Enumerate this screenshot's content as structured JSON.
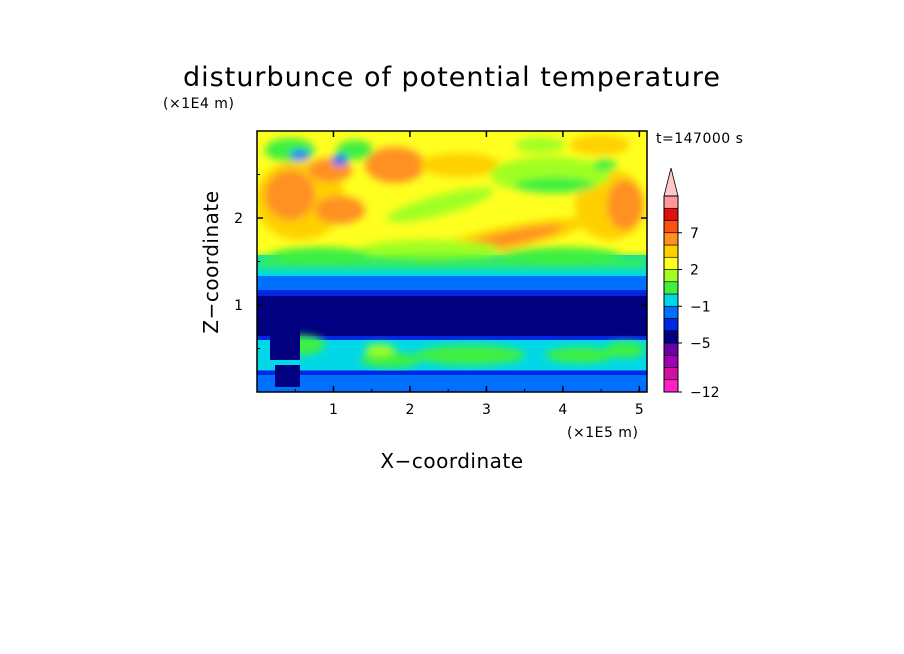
{
  "chart_data": {
    "type": "heatmap",
    "title": "disturbunce of potential temperature",
    "xlabel": "X−coordinate",
    "ylabel": "Z−coordinate",
    "x_unit": "(×1E5 m)",
    "y_unit": "(×1E4 m)",
    "time_label": "t=147000 s",
    "xlim": [
      0,
      5.1
    ],
    "ylim": [
      0,
      3.0
    ],
    "x_ticks": [
      1,
      2,
      3,
      4,
      5
    ],
    "x_tick_labels": [
      "1",
      "2",
      "3",
      "4",
      "5"
    ],
    "y_ticks": [
      1,
      2
    ],
    "y_tick_labels": [
      "1",
      "2"
    ],
    "colorbar": {
      "levels": [
        -12,
        -11,
        -9,
        -7,
        -5,
        -4,
        -3,
        -1,
        0,
        1,
        2,
        3,
        4,
        7,
        8,
        9
      ],
      "colors": [
        "#ff20c8",
        "#d010a0",
        "#a000b0",
        "#6a00a8",
        "#000080",
        "#0028e0",
        "#0070ff",
        "#00d8e8",
        "#40f040",
        "#a0ff20",
        "#ffff20",
        "#ffd000",
        "#ff9020",
        "#ff5010",
        "#e01010",
        "#ff9a9a",
        "#ffc8c8"
      ],
      "extend": "max",
      "tick_values": [
        7,
        2,
        -1,
        -5,
        -12
      ],
      "tick_labels": [
        "7",
        "2",
        "−1",
        "−5",
        "−12"
      ]
    },
    "field": {
      "description_rows_top_to_bottom": [
        {
          "z": [
            2.6,
            3.0
          ],
          "value_range": [
            -1,
            4
          ]
        },
        {
          "z": [
            1.7,
            2.6
          ],
          "value_range": [
            0,
            4
          ]
        },
        {
          "z": [
            1.3,
            1.7
          ],
          "value_range": [
            -3,
            1
          ]
        },
        {
          "z": [
            0.5,
            1.3
          ],
          "value_range": [
            -5,
            -3
          ]
        },
        {
          "z": [
            0.0,
            0.5
          ],
          "value_range": [
            -3,
            0
          ]
        }
      ]
    }
  }
}
